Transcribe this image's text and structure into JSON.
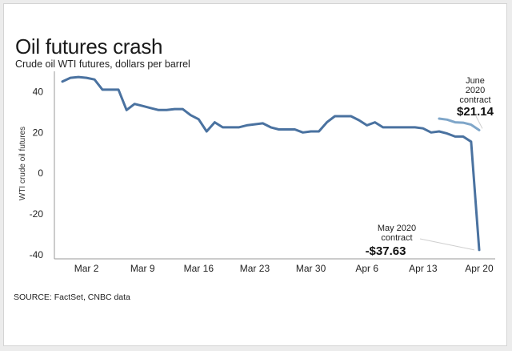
{
  "title": "Oil futures crash",
  "subtitle": "Crude oil WTI futures, dollars per barrel",
  "source": "SOURCE: FactSet, CNBC data",
  "colors": {
    "may_series": "#4a72a0",
    "june_series": "#7fa6c9",
    "axis": "#999999",
    "background": "#ffffff"
  },
  "chart_data": {
    "type": "line",
    "ylabel": "WTI crude oil futures",
    "ylim": [
      -42,
      50
    ],
    "yticks": [
      40,
      20,
      0,
      -20,
      -40
    ],
    "grid": false,
    "x_range": [
      "2020-02-27",
      "2020-04-22"
    ],
    "xticks": [
      {
        "date": "2020-03-02",
        "label": "Mar 2"
      },
      {
        "date": "2020-03-09",
        "label": "Mar 9"
      },
      {
        "date": "2020-03-16",
        "label": "Mar 16"
      },
      {
        "date": "2020-03-23",
        "label": "Mar 23"
      },
      {
        "date": "2020-03-30",
        "label": "Mar 30"
      },
      {
        "date": "2020-04-06",
        "label": "Apr 6"
      },
      {
        "date": "2020-04-13",
        "label": "Apr 13"
      },
      {
        "date": "2020-04-20",
        "label": "Apr 20"
      }
    ],
    "series": [
      {
        "points": [
          [
            "2020-02-28",
            45
          ],
          [
            "2020-02-29",
            46.8
          ],
          [
            "2020-03-01",
            47.2
          ],
          [
            "2020-03-02",
            46.8
          ],
          [
            "2020-03-03",
            46
          ],
          [
            "2020-03-04",
            41
          ],
          [
            "2020-03-05",
            41
          ],
          [
            "2020-03-06",
            41
          ],
          [
            "2020-03-07",
            31
          ],
          [
            "2020-03-08",
            34
          ],
          [
            "2020-03-09",
            33
          ],
          [
            "2020-03-10",
            32
          ],
          [
            "2020-03-11",
            31
          ],
          [
            "2020-03-12",
            31
          ],
          [
            "2020-03-13",
            31.5
          ],
          [
            "2020-03-14",
            31.5
          ],
          [
            "2020-03-15",
            28.5
          ],
          [
            "2020-03-16",
            26.5
          ],
          [
            "2020-03-17",
            20.5
          ],
          [
            "2020-03-18",
            25
          ],
          [
            "2020-03-19",
            22.5
          ],
          [
            "2020-03-20",
            22.5
          ],
          [
            "2020-03-21",
            22.5
          ],
          [
            "2020-03-22",
            23.5
          ],
          [
            "2020-03-23",
            24
          ],
          [
            "2020-03-24",
            24.5
          ],
          [
            "2020-03-25",
            22.5
          ],
          [
            "2020-03-26",
            21.5
          ],
          [
            "2020-03-27",
            21.5
          ],
          [
            "2020-03-28",
            21.5
          ],
          [
            "2020-03-29",
            20
          ],
          [
            "2020-03-30",
            20.5
          ],
          [
            "2020-03-31",
            20.5
          ],
          [
            "2020-04-01",
            25
          ],
          [
            "2020-04-02",
            28
          ],
          [
            "2020-04-03",
            28
          ],
          [
            "2020-04-04",
            28
          ],
          [
            "2020-04-05",
            26
          ],
          [
            "2020-04-06",
            23.5
          ],
          [
            "2020-04-07",
            25
          ],
          [
            "2020-04-08",
            22.5
          ],
          [
            "2020-04-09",
            22.5
          ],
          [
            "2020-04-10",
            22.5
          ],
          [
            "2020-04-11",
            22.5
          ],
          [
            "2020-04-12",
            22.5
          ],
          [
            "2020-04-13",
            22
          ],
          [
            "2020-04-14",
            20
          ],
          [
            "2020-04-15",
            20.5
          ],
          [
            "2020-04-16",
            19.5
          ],
          [
            "2020-04-17",
            18
          ],
          [
            "2020-04-18",
            18
          ],
          [
            "2020-04-19",
            15.5
          ],
          [
            "2020-04-20",
            -37.63
          ]
        ],
        "label_lines": [
          "May 2020",
          "contract"
        ],
        "label_value": "-$37.63"
      },
      {
        "points": [
          [
            "2020-04-15",
            26.8
          ],
          [
            "2020-04-16",
            26.3
          ],
          [
            "2020-04-17",
            25
          ],
          [
            "2020-04-18",
            24.8
          ],
          [
            "2020-04-19",
            23.8
          ],
          [
            "2020-04-20",
            21.14
          ]
        ],
        "label_lines": [
          "June",
          "2020",
          "contract"
        ],
        "label_value": "$21.14"
      }
    ]
  }
}
